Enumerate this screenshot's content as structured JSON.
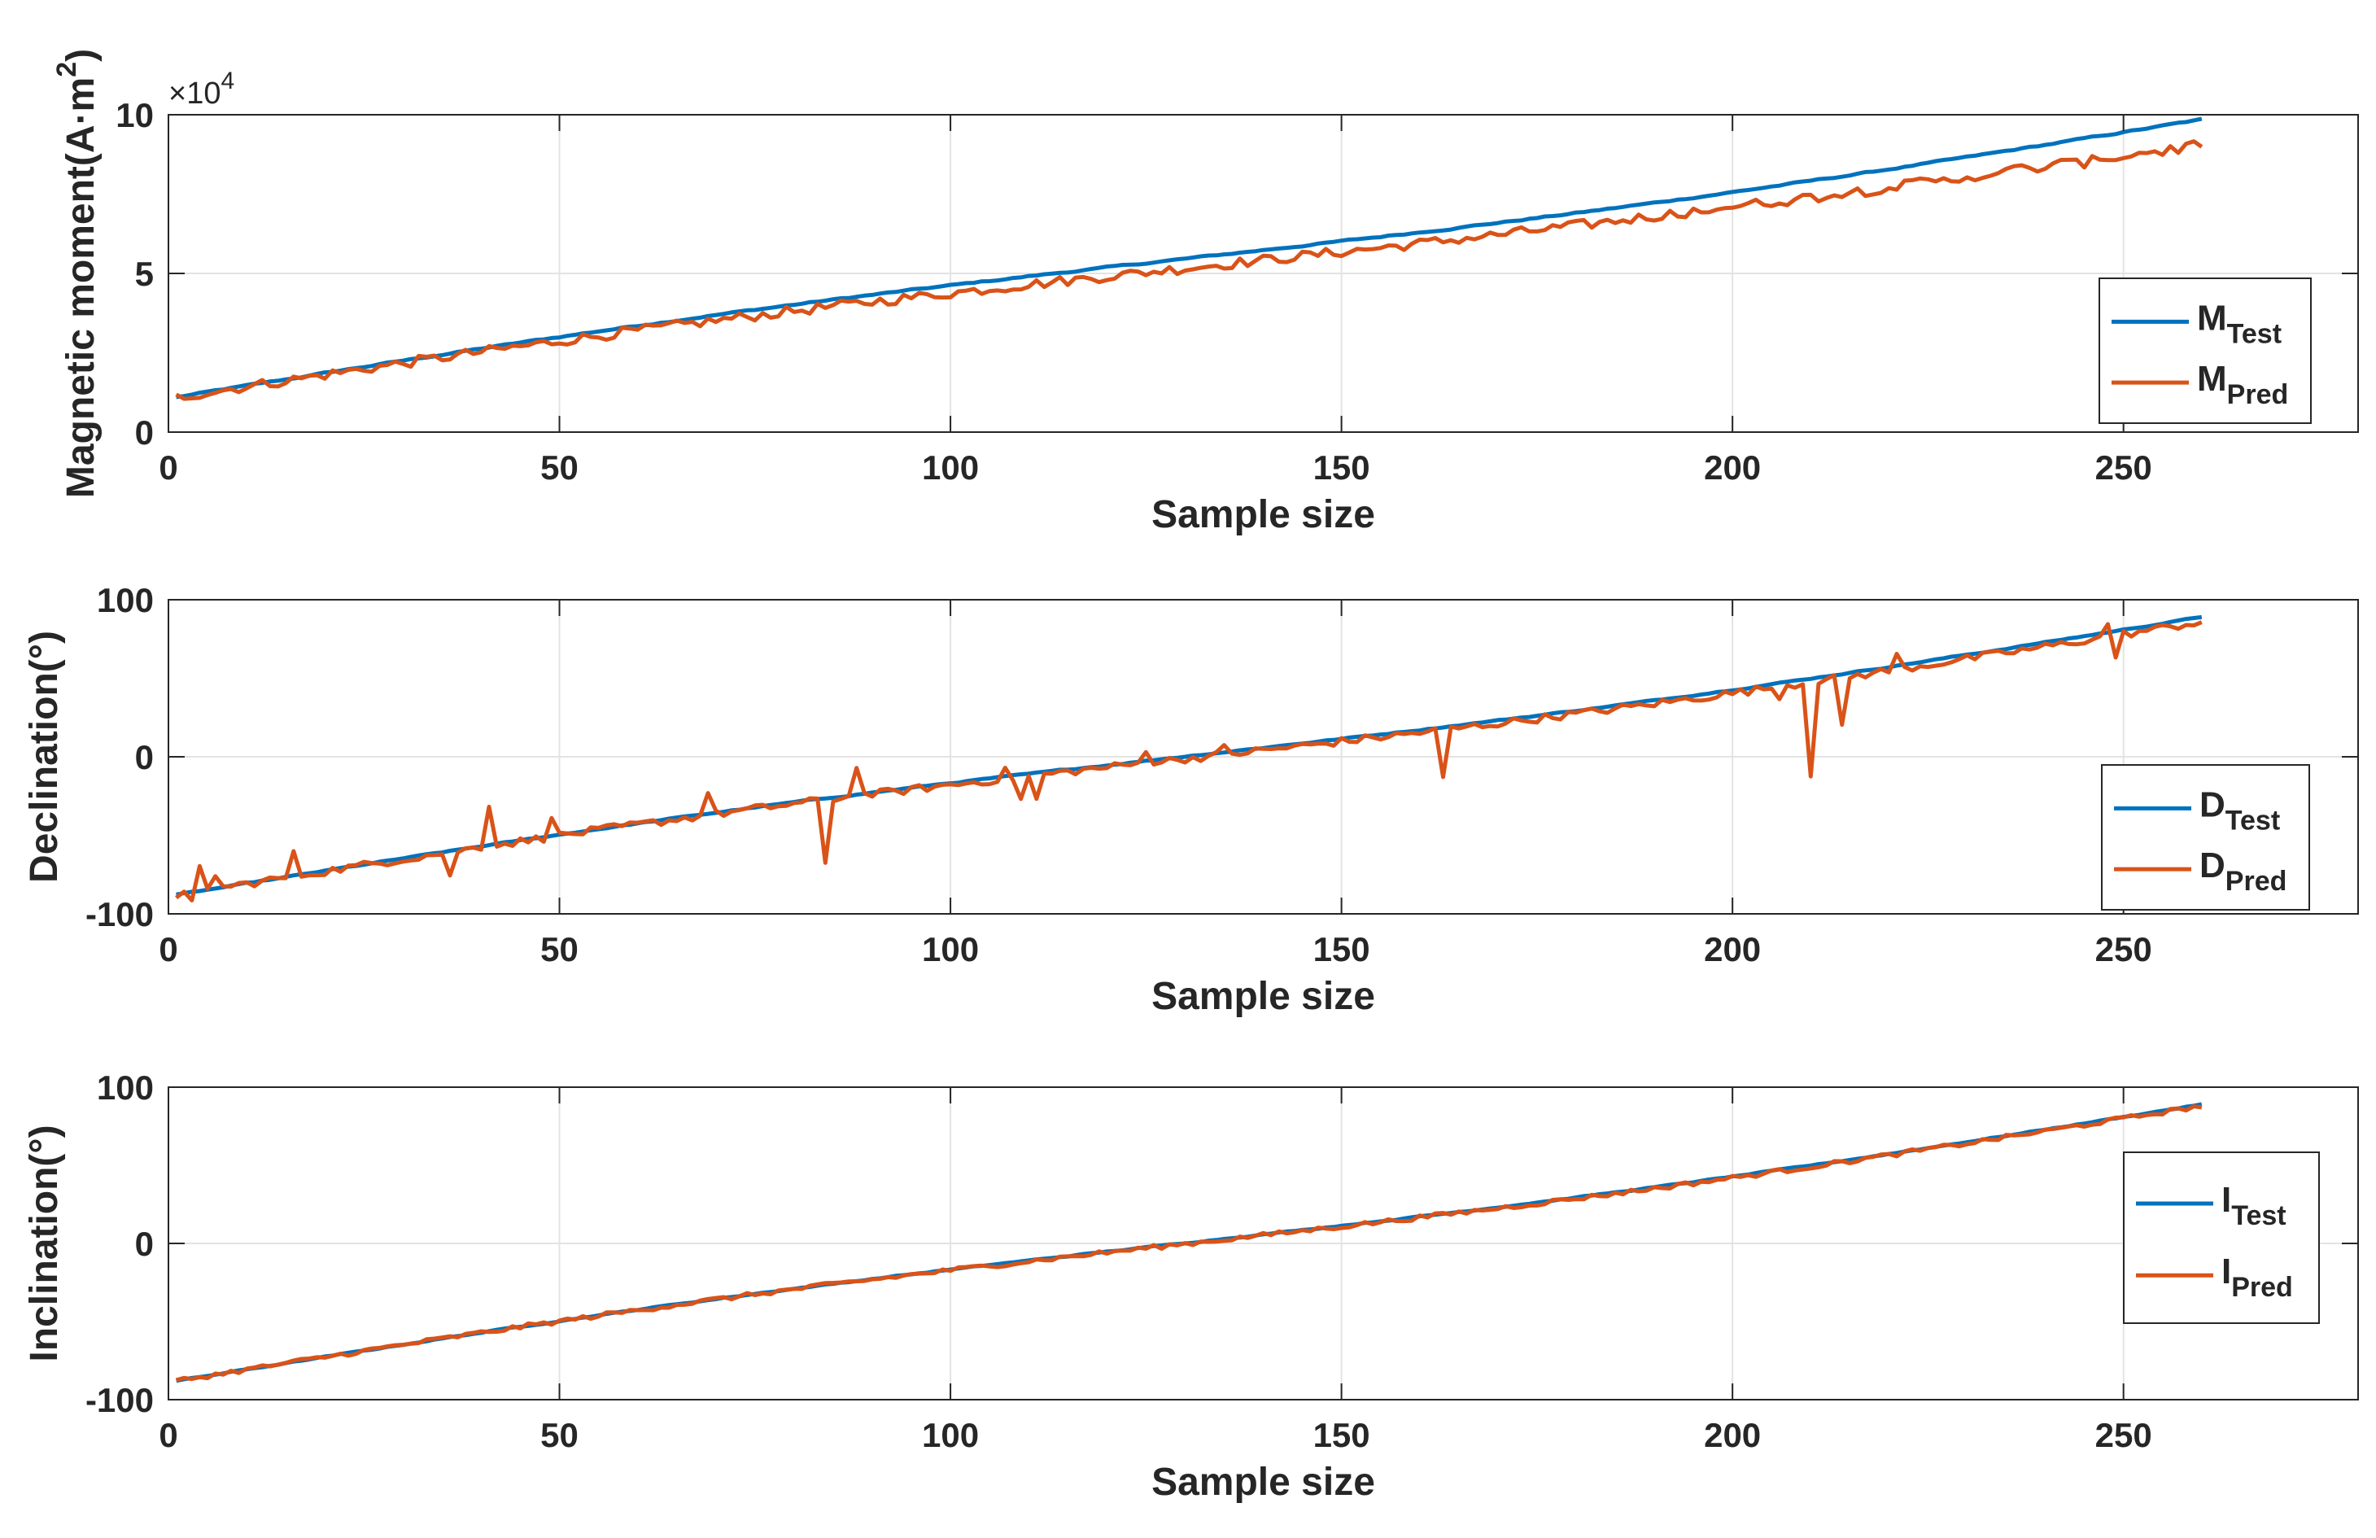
{
  "chart_data": [
    {
      "type": "line",
      "xlabel": "Sample size",
      "ylabel_main": "Magnetic moment(A·m",
      "ylabel_sup": "2",
      "ylabel_close": ")",
      "exponent_base": "×10",
      "exponent_power": "4",
      "xlim": [
        0,
        280
      ],
      "ylim": [
        0,
        100000
      ],
      "xticks": [
        0,
        50,
        100,
        150,
        200,
        250
      ],
      "yticks": [
        0,
        50000,
        100000
      ],
      "ytick_labels": [
        "0",
        "5",
        "10"
      ],
      "grid": true,
      "legend_position": "right",
      "n": 260,
      "series": [
        {
          "name": "M",
          "sub": "Test",
          "color": "#0072BD",
          "start": 11000,
          "end": 98500,
          "noise": 400,
          "pattern": "smooth"
        },
        {
          "name": "M",
          "sub": "Pred",
          "color": "#D95319",
          "start": 11000,
          "end": 92500,
          "noise": 1600,
          "pattern": "noisy"
        }
      ]
    },
    {
      "type": "line",
      "xlabel": "Sample size",
      "ylabel_main": "Declination(°)",
      "xlim": [
        0,
        280
      ],
      "ylim": [
        -100,
        100
      ],
      "xticks": [
        0,
        50,
        100,
        150,
        200,
        250
      ],
      "yticks": [
        -100,
        0,
        100
      ],
      "ytick_labels": [
        "-100",
        "0",
        "100"
      ],
      "grid": true,
      "legend_position": "right",
      "n": 260,
      "spikes": [
        [
          3,
          -5
        ],
        [
          4,
          16
        ],
        [
          6,
          8
        ],
        [
          16,
          16
        ],
        [
          36,
          -15
        ],
        [
          41,
          25
        ],
        [
          49,
          12
        ],
        [
          69,
          14
        ],
        [
          84,
          -40
        ],
        [
          88,
          18
        ],
        [
          107,
          7
        ],
        [
          109,
          -14
        ],
        [
          111,
          -15
        ],
        [
          125,
          7
        ],
        [
          135,
          6
        ],
        [
          163,
          -30
        ],
        [
          206,
          -8
        ],
        [
          210,
          -60
        ],
        [
          214,
          -30
        ],
        [
          221,
          10
        ],
        [
          248,
          8
        ],
        [
          249,
          -14
        ]
      ],
      "series": [
        {
          "name": "D",
          "sub": "Test",
          "color": "#0072BD",
          "start": -88,
          "end": 89,
          "noise": 0.6,
          "pattern": "smooth"
        },
        {
          "name": "D",
          "sub": "Pred",
          "color": "#D95319",
          "start": -88,
          "end": 86,
          "noise": 2.5,
          "pattern": "spiky"
        }
      ]
    },
    {
      "type": "line",
      "xlabel": "Sample size",
      "ylabel_main": "Inclination(°)",
      "xlim": [
        0,
        280
      ],
      "ylim": [
        -100,
        100
      ],
      "xticks": [
        0,
        50,
        100,
        150,
        200,
        250
      ],
      "yticks": [
        -100,
        0,
        100
      ],
      "ytick_labels": [
        "-100",
        "0",
        "100"
      ],
      "grid": true,
      "legend_position": "right",
      "n": 260,
      "series": [
        {
          "name": "I",
          "sub": "Test",
          "color": "#0072BD",
          "start": -88,
          "end": 89,
          "noise": 0.5,
          "pattern": "smooth"
        },
        {
          "name": "I",
          "sub": "Pred",
          "color": "#D95319",
          "start": -88,
          "end": 88,
          "noise": 1.5,
          "pattern": "noisy"
        }
      ]
    }
  ]
}
